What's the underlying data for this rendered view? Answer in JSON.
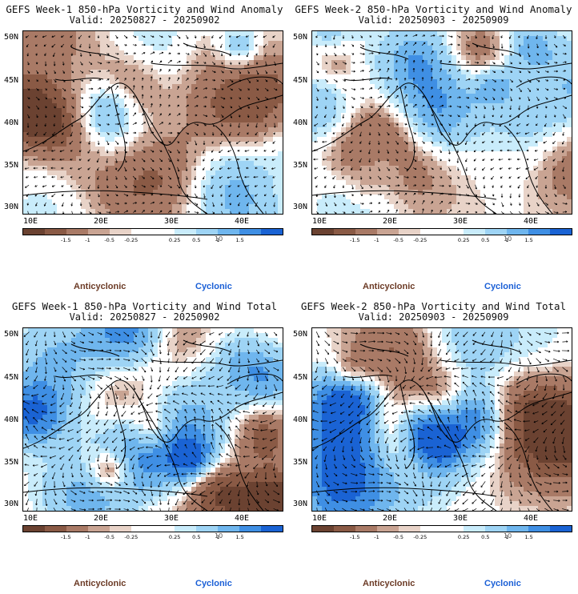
{
  "panels": [
    {
      "title": "GEFS Week-1 850-hPa Vorticity and Wind Anomaly",
      "valid": "Valid: 20250827 - 20250902",
      "kind": "anomaly"
    },
    {
      "title": "GEFS Week-2 850-hPa Vorticity and Wind Anomaly",
      "valid": "Valid: 20250903 - 20250909",
      "kind": "anomaly"
    },
    {
      "title": "GEFS Week-1 850-hPa Vorticity and Wind Total",
      "valid": "Valid: 20250827 - 20250902",
      "kind": "total"
    },
    {
      "title": "GEFS Week-2 850-hPa Vorticity and Wind Total",
      "valid": "Valid: 20250903 - 20250909",
      "kind": "total"
    }
  ],
  "axes": {
    "lat_labels": [
      "50N",
      "45N",
      "40N",
      "35N",
      "30N"
    ],
    "lon_labels": [
      "10E",
      "20E",
      "30E",
      "40E"
    ]
  },
  "colorbar": {
    "labels": [
      "-1.5",
      "-1",
      "-0.5",
      "-0.25",
      "0.25",
      "0.5",
      "1",
      "1.5"
    ],
    "unit": "10",
    "colors": [
      "#6b4231",
      "#8a5a45",
      "#a97a66",
      "#c9a493",
      "#e8d3c8",
      "#ffffff",
      "#ffffff",
      "#c9ecfb",
      "#9ed4f5",
      "#6fb6ee",
      "#3f8fe4",
      "#1a63d4"
    ]
  },
  "legend": {
    "anticyclonic": "Anticyclonic",
    "cyclonic": "Cyclonic"
  }
}
